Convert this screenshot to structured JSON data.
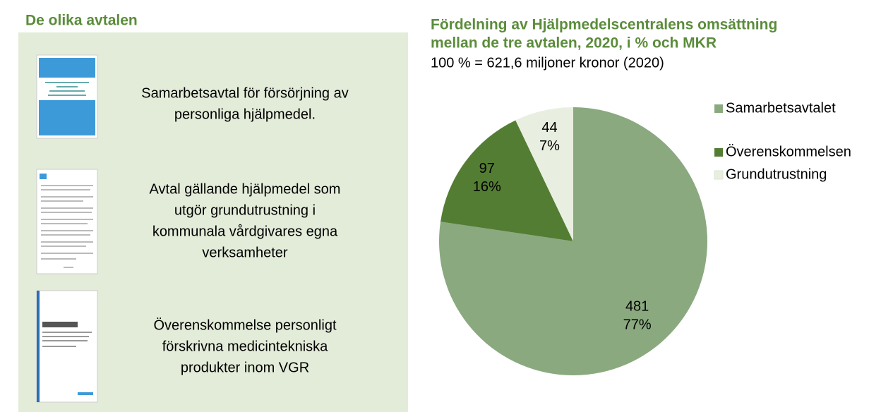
{
  "left_panel": {
    "heading": "De olika avtalen",
    "items": [
      {
        "text": [
          "Samarbetsavtal för försörjning av",
          "personliga hjälpmedel."
        ]
      },
      {
        "text": [
          "Avtal gällande hjälpmedel som",
          "utgör grundutrustning i",
          "kommunala vårdgivares egna",
          "verksamheter"
        ]
      },
      {
        "text": [
          "Överenskommelse personligt",
          "förskrivna medicintekniska",
          "produkter inom VGR"
        ]
      }
    ]
  },
  "chart_data": {
    "type": "pie",
    "title": [
      "Fördelning av Hjälpmedelscentralens omsättning",
      "mellan de tre avtalen, 2020, i % och MKR"
    ],
    "subtitle": "100 % = 621,6 miljoner kronor (2020)",
    "categories": [
      "Samarbetsavtalet",
      "Överenskommelsen",
      "Grundutrustning"
    ],
    "values": [
      481,
      97,
      44
    ],
    "percentages": [
      77,
      16,
      7
    ],
    "percentage_labels": [
      "77%",
      "16%",
      "7%"
    ],
    "colors": [
      "#8aa97f",
      "#547d34",
      "#e9efe0"
    ],
    "legend": "right"
  }
}
